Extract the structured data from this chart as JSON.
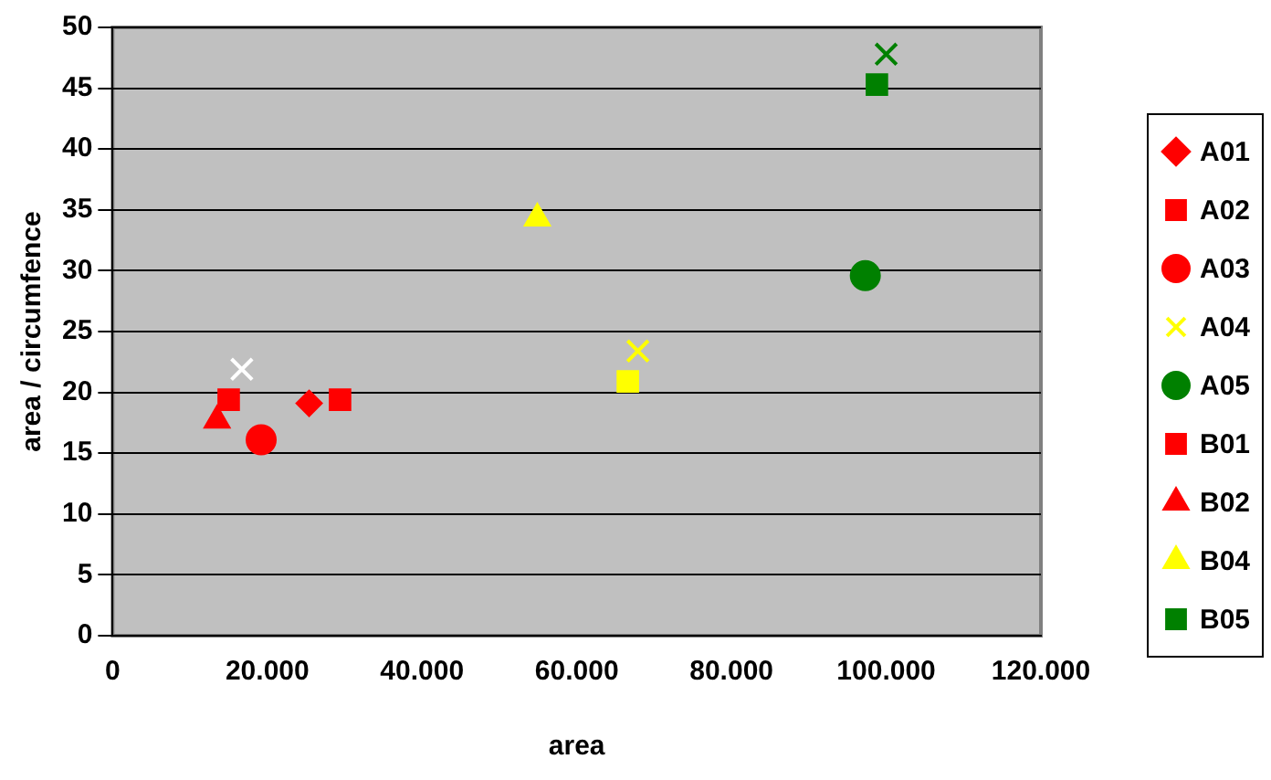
{
  "chart_data": {
    "type": "scatter",
    "xlabel": "area",
    "ylabel": "area / circumfence",
    "xlim": [
      0,
      120000
    ],
    "xticks": [
      {
        "value": 0,
        "label": "0"
      },
      {
        "value": 20000,
        "label": "20.000"
      },
      {
        "value": 40000,
        "label": "40.000"
      },
      {
        "value": 60000,
        "label": "60.000"
      },
      {
        "value": 80000,
        "label": "80.000"
      },
      {
        "value": 100000,
        "label": "100.000"
      },
      {
        "value": 120000,
        "label": "120.000"
      }
    ],
    "ylim": [
      0,
      50
    ],
    "yticks": [
      0,
      5,
      10,
      15,
      20,
      25,
      30,
      35,
      40,
      45,
      50
    ],
    "grid": "y",
    "legend": "right",
    "series": [
      {
        "name": "A01",
        "color": "#ff0000",
        "marker": "diamond",
        "x": [
          25400
        ],
        "values": [
          19.1
        ]
      },
      {
        "name": "A02",
        "color": "#ff0000",
        "marker": "square",
        "x": [
          29400
        ],
        "values": [
          19.4
        ]
      },
      {
        "name": "A03",
        "color": "#ff0000",
        "marker": "circle",
        "x": [
          19200
        ],
        "values": [
          16.1
        ]
      },
      {
        "name": "A04",
        "color": "#ffff00",
        "marker": "cross",
        "x": [
          67900
        ],
        "values": [
          23.4
        ]
      },
      {
        "name": "A05",
        "color": "#008000",
        "marker": "circle",
        "x": [
          97300
        ],
        "values": [
          29.6
        ]
      },
      {
        "name": "B01",
        "color": "#ff0000",
        "marker": "square",
        "x": [
          15000
        ],
        "values": [
          19.4
        ]
      },
      {
        "name": "B02",
        "color": "#ff0000",
        "marker": "triangle",
        "x": [
          13500
        ],
        "values": [
          17.7
        ]
      },
      {
        "name": "B04",
        "color": "#ffff00",
        "marker": "triangle",
        "x": [
          54900
        ],
        "values": [
          34.3
        ]
      },
      {
        "name": "B05",
        "color": "#008000",
        "marker": "square",
        "x": [
          98800
        ],
        "values": [
          45.3
        ]
      },
      {
        "color": "#ffff00",
        "marker": "square",
        "x": [
          66600
        ],
        "values": [
          20.9
        ]
      },
      {
        "color": "#008000",
        "marker": "cross",
        "x": [
          100000
        ],
        "values": [
          47.8
        ]
      },
      {
        "color": "#ffffff",
        "marker": "cross",
        "x": [
          16700
        ],
        "values": [
          21.9
        ]
      }
    ]
  }
}
